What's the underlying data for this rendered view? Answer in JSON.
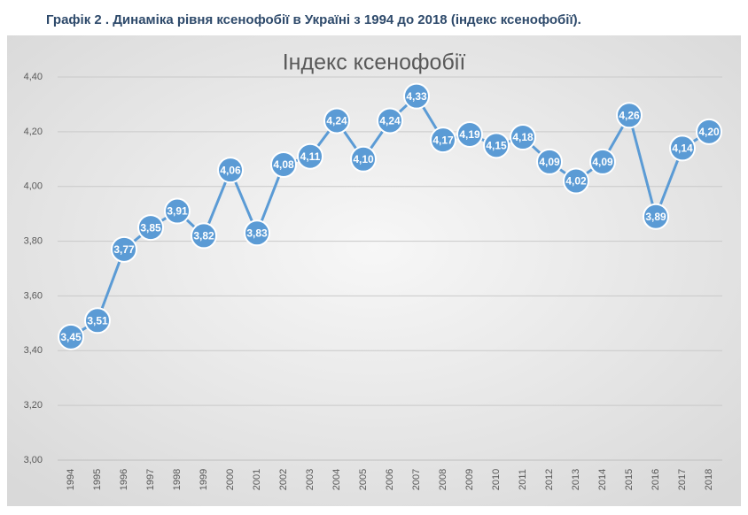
{
  "page_title": "Графік 2 . Динаміка рівня ксенофобії в Україні з 1994 до 2018 (індекс ксенофобії).",
  "chart_data": {
    "type": "line",
    "title": "Індекс ксенофобії",
    "categories": [
      "1994",
      "1995",
      "1996",
      "1997",
      "1998",
      "1999",
      "2000",
      "2001",
      "2002",
      "2003",
      "2004",
      "2005",
      "2006",
      "2007",
      "2008",
      "2009",
      "2010",
      "2011",
      "2012",
      "2013",
      "2014",
      "2015",
      "2016",
      "2017",
      "2018"
    ],
    "values": [
      3.45,
      3.51,
      3.77,
      3.85,
      3.91,
      3.82,
      4.06,
      3.83,
      4.08,
      4.11,
      4.24,
      4.1,
      4.24,
      4.33,
      4.17,
      4.19,
      4.15,
      4.18,
      4.09,
      4.02,
      4.09,
      4.26,
      3.89,
      4.14,
      4.2
    ],
    "value_labels": [
      "3,45",
      "3,51",
      "3,77",
      "3,85",
      "3,91",
      "3,82",
      "4,06",
      "3,83",
      "4,08",
      "4,11",
      "4,24",
      "4,10",
      "4,24",
      "4,33",
      "4,17",
      "4,19",
      "4,15",
      "4,18",
      "4,09",
      "4,02",
      "4,09",
      "4,26",
      "3,89",
      "4,14",
      "4,20"
    ],
    "color": "#5b9bd5",
    "ylim": [
      3.0,
      4.4
    ],
    "yticks": [
      {
        "value": 3.0,
        "label": "3,00"
      },
      {
        "value": 3.2,
        "label": "3,20"
      },
      {
        "value": 3.4,
        "label": "3,40"
      },
      {
        "value": 3.6,
        "label": "3,60"
      },
      {
        "value": 3.8,
        "label": "3,80"
      },
      {
        "value": 4.0,
        "label": "4,00"
      },
      {
        "value": 4.2,
        "label": "4,20"
      },
      {
        "value": 4.4,
        "label": "4,40"
      }
    ],
    "grid": true
  }
}
